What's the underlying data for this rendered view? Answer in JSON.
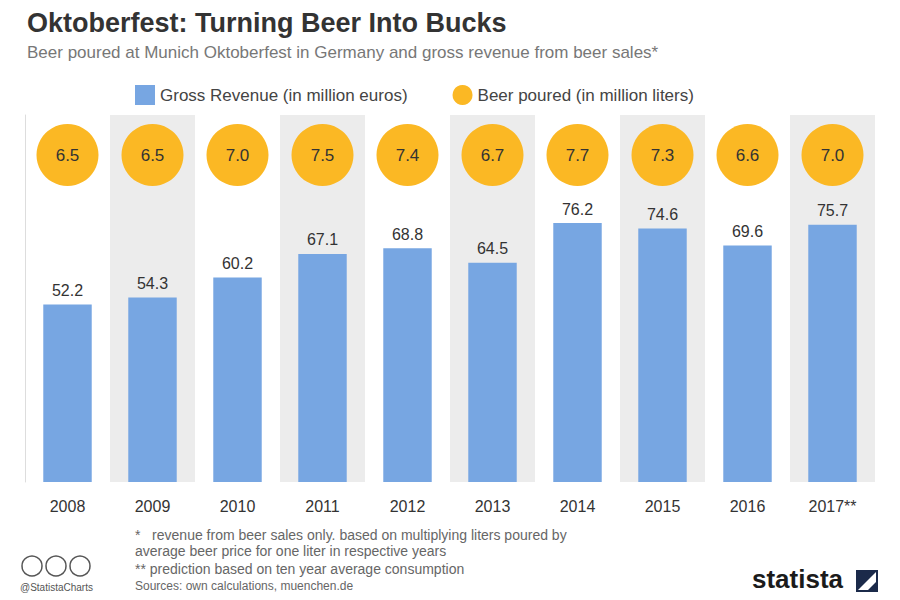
{
  "chart_data": {
    "type": "bar",
    "title": "Oktoberfest: Turning Beer Into Bucks",
    "subtitle": "Beer poured at Munich Oktoberfest in Germany and gross revenue from beer sales*",
    "categories": [
      "2008",
      "2009",
      "2010",
      "2011",
      "2012",
      "2013",
      "2014",
      "2015",
      "2016",
      "2017**"
    ],
    "series": [
      {
        "name": "Gross Revenue (in million euros)",
        "color": "#77a6e2",
        "values": [
          52.2,
          54.3,
          60.2,
          67.1,
          68.8,
          64.5,
          76.2,
          74.6,
          69.6,
          75.7
        ]
      },
      {
        "name": "Beer poured (in million liters)",
        "type": "text",
        "marker": "circle",
        "color": "#fbb824",
        "values": [
          6.5,
          6.5,
          7.0,
          7.5,
          7.4,
          6.7,
          7.7,
          7.3,
          6.6,
          7.0
        ],
        "value_labels": [
          "6.5",
          "6.5",
          "7.0",
          "7.5",
          "7.4",
          "6.7",
          "7.7",
          "7.3",
          "6.6",
          "7.0"
        ]
      }
    ],
    "ylim": [
      0,
      108
    ],
    "tick_labels": "x",
    "grid": false,
    "legend": "top",
    "data_labels": true,
    "annotations": [
      "*   revenue from beer sales only. based on multiplying liters poured by average beer price for one liter in respective years",
      "** prediction based on ten year average consumption"
    ],
    "source": "Sources: own calculations, muenchen.de",
    "credit": "@StatistaCharts",
    "logo": "statista"
  }
}
